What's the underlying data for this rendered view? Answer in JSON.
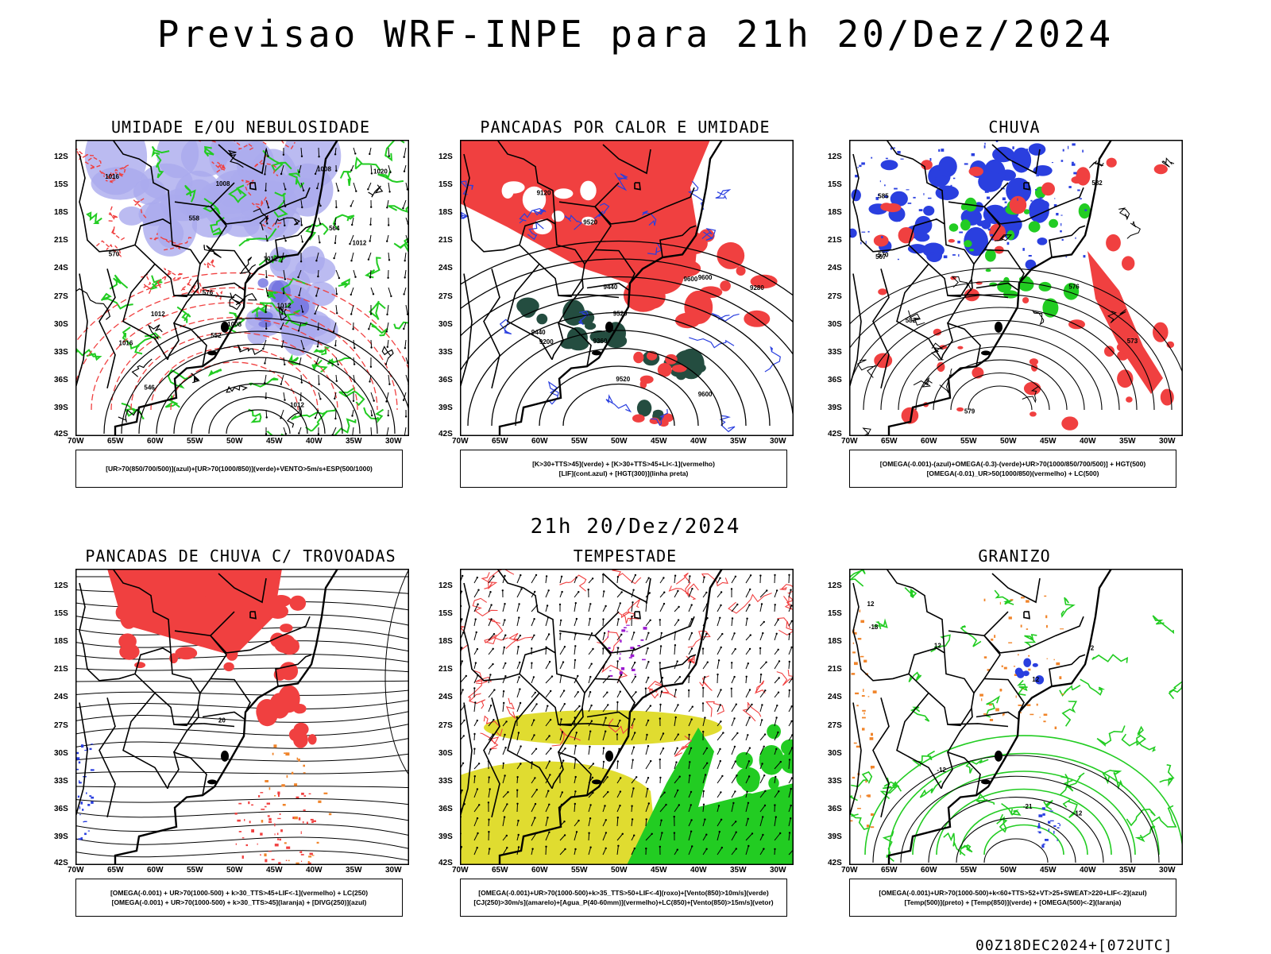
{
  "main_title": "Previsao WRF-INPE  para 21h 20/Dez/2024",
  "subtitle": "21h 20/Dez/2024",
  "footer": "00Z18DEC2024+[072UTC]",
  "axes": {
    "lat_labels": [
      "12S",
      "15S",
      "18S",
      "21S",
      "24S",
      "27S",
      "30S",
      "33S",
      "36S",
      "39S",
      "42S"
    ],
    "lon_labels": [
      "70W",
      "65W",
      "60W",
      "55W",
      "50W",
      "45W",
      "40W",
      "35W",
      "30W"
    ]
  },
  "colors": {
    "red": "#f04040",
    "green": "#22cc22",
    "blue": "#2a3fdf",
    "lavender": "#aaaaee",
    "yellow": "#e0dc30",
    "darkgreen": "#244d40",
    "orange": "#f0842a",
    "purple": "#9a1acf"
  },
  "panels": [
    {
      "title": "UMIDADE E/OU NEBULOSIDADE",
      "legend": [
        "[UR>70(850/700/500)](azul)+[UR>70(1000/850)](verde)+VENTO>5m/s+ESP(500/1000)"
      ],
      "contour_labels": [
        "1012",
        "1008",
        "1008",
        "1012",
        "1016",
        "1008",
        "1020",
        "1016",
        "1012",
        "1012",
        "1012",
        "576",
        "570",
        "564",
        "558",
        "552",
        "546"
      ]
    },
    {
      "title": "PANCADAS POR CALOR E UMIDADE",
      "legend": [
        "[K>30+TTS>45](verde) + [K>30+TTS>45+LI<-1](vermelho)",
        "[LIF](cont.azul) + [HGT(300)](linha preta)"
      ],
      "contour_labels": [
        "9600",
        "9600",
        "9600",
        "9520",
        "9520",
        "9520",
        "9440",
        "9440",
        "9360",
        "9280",
        "9200",
        "9120"
      ]
    },
    {
      "title": "CHUVA",
      "legend": [
        "[OMEGA(-0.001)-(azul)+OMEGA(-0.3)-(verde)+UR>70(1000/850/700/500)] + HGT(500)",
        "[OMEGA(-0.01)_UR>50(1000/850)(vermelho) + LC(500)"
      ],
      "contour_labels": [
        "585",
        "582",
        "579",
        "576",
        "573",
        "570",
        "567",
        "582"
      ]
    },
    {
      "title": "PANCADAS DE CHUVA C/ TROVOADAS",
      "legend": [
        "[OMEGA(-0.001) + UR>70(1000-500) + k>30_TTS>45+LIF<-1](vermelho) + LC(250)",
        "[OMEGA(-0.001) + UR>70(1000-500) + k>30_TTS>45](laranja) + [DIVG(250)](azul)"
      ],
      "contour_labels": [
        "20"
      ]
    },
    {
      "title": "TEMPESTADE",
      "legend": [
        "[OMEGA(-0.001)+UR>70(1000-500)+k>35_TTS>50+LIF<-4](roxo)+[Vento(850)>10m/s](verde)",
        "[CJ(250)>30m/s](amarelo)+[Agua_P(40-60mm)](vermelho)+LC(850)+[Vento(850)>15m/s](vetor)"
      ],
      "contour_labels": []
    },
    {
      "title": "GRANIZO",
      "legend": [
        "[OMEGA(-0.001)+UR>70(1000-500)+k<60+TTS>52+VT>25+SWEAT>220+LIF<-2](azul)",
        "[Temp(500)](preto) + [Temp(850)](verde) + [OMEGA(500)<-2](laranja)"
      ],
      "contour_labels": [
        "12",
        "12",
        "12",
        "12",
        "-18",
        "-21",
        "-12",
        "2"
      ]
    }
  ]
}
